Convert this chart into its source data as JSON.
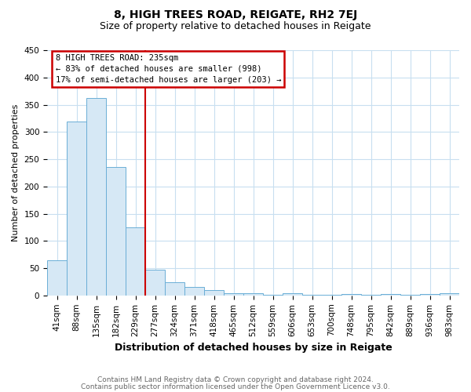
{
  "title": "8, HIGH TREES ROAD, REIGATE, RH2 7EJ",
  "subtitle": "Size of property relative to detached houses in Reigate",
  "xlabel": "Distribution of detached houses by size in Reigate",
  "ylabel": "Number of detached properties",
  "footnote1": "Contains HM Land Registry data © Crown copyright and database right 2024.",
  "footnote2": "Contains public sector information licensed under the Open Government Licence v3.0.",
  "bar_labels": [
    "41sqm",
    "88sqm",
    "135sqm",
    "182sqm",
    "229sqm",
    "277sqm",
    "324sqm",
    "371sqm",
    "418sqm",
    "465sqm",
    "512sqm",
    "559sqm",
    "606sqm",
    "653sqm",
    "700sqm",
    "748sqm",
    "795sqm",
    "842sqm",
    "889sqm",
    "936sqm",
    "983sqm"
  ],
  "bar_values": [
    65,
    319,
    362,
    235,
    125,
    47,
    24,
    15,
    10,
    4,
    4,
    1,
    4,
    1,
    1,
    3,
    1,
    3,
    1,
    3,
    4
  ],
  "bar_color": "#d6e8f5",
  "bar_edgecolor": "#6baed6",
  "ylim": [
    0,
    450
  ],
  "yticks": [
    0,
    50,
    100,
    150,
    200,
    250,
    300,
    350,
    400,
    450
  ],
  "redline_index": 4.5,
  "annotation_line1": "8 HIGH TREES ROAD: 235sqm",
  "annotation_line2": "← 83% of detached houses are smaller (998)",
  "annotation_line3": "17% of semi-detached houses are larger (203) →",
  "annotation_box_edgecolor": "#cc0000",
  "redline_color": "#cc0000",
  "background_color": "#ffffff",
  "grid_color": "#c8dff0",
  "title_fontsize": 10,
  "subtitle_fontsize": 9,
  "ylabel_fontsize": 8,
  "xlabel_fontsize": 9,
  "tick_fontsize": 7.5,
  "footnote_color": "#666666",
  "footnote_fontsize": 6.5
}
